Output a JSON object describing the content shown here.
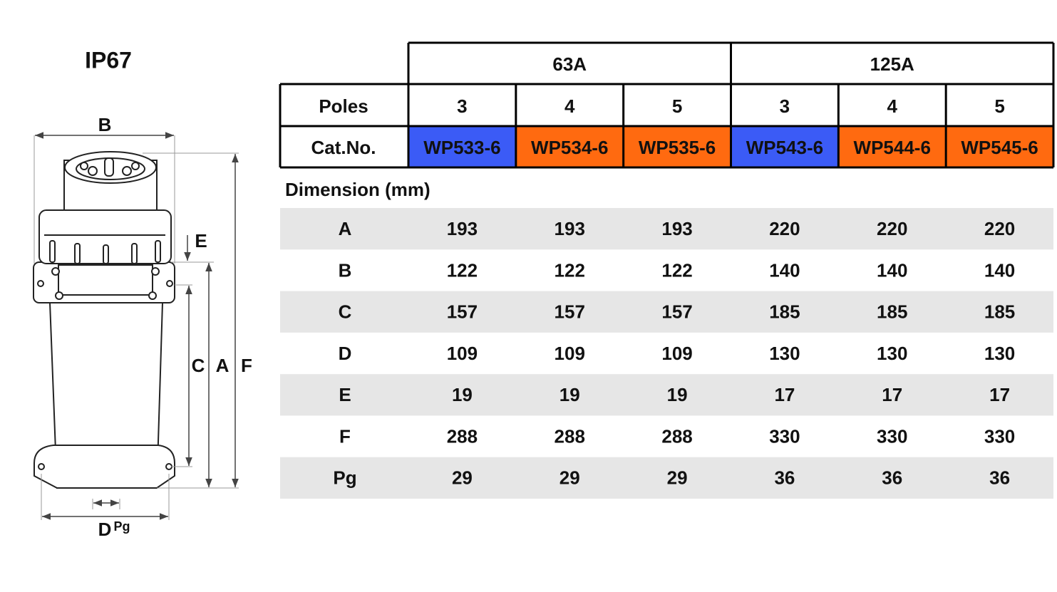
{
  "title": "IP67",
  "diagram": {
    "labels": [
      "B",
      "E",
      "C",
      "A",
      "F",
      "D",
      "Pg"
    ]
  },
  "table": {
    "groups": [
      "63A",
      "125A"
    ],
    "poles_label": "Poles",
    "poles": [
      3,
      4,
      5,
      3,
      4,
      5
    ],
    "cat_label": "Cat.No.",
    "cat_nos": [
      {
        "text": "WP533-6",
        "color": "#3b5bf6"
      },
      {
        "text": "WP534-6",
        "color": "#ff6a10"
      },
      {
        "text": "WP535-6",
        "color": "#ff6a10"
      },
      {
        "text": "WP543-6",
        "color": "#3b5bf6"
      },
      {
        "text": "WP544-6",
        "color": "#ff6a10"
      },
      {
        "text": "WP545-6",
        "color": "#ff6a10"
      }
    ],
    "dimension_label": "Dimension (mm)",
    "rows": [
      {
        "label": "A",
        "values": [
          193,
          193,
          193,
          220,
          220,
          220
        ]
      },
      {
        "label": "B",
        "values": [
          122,
          122,
          122,
          140,
          140,
          140
        ]
      },
      {
        "label": "C",
        "values": [
          157,
          157,
          157,
          185,
          185,
          185
        ]
      },
      {
        "label": "D",
        "values": [
          109,
          109,
          109,
          130,
          130,
          130
        ]
      },
      {
        "label": "E",
        "values": [
          19,
          19,
          19,
          17,
          17,
          17
        ]
      },
      {
        "label": "F",
        "values": [
          288,
          288,
          288,
          330,
          330,
          330
        ]
      },
      {
        "label": "Pg",
        "values": [
          29,
          29,
          29,
          36,
          36,
          36
        ]
      }
    ]
  }
}
